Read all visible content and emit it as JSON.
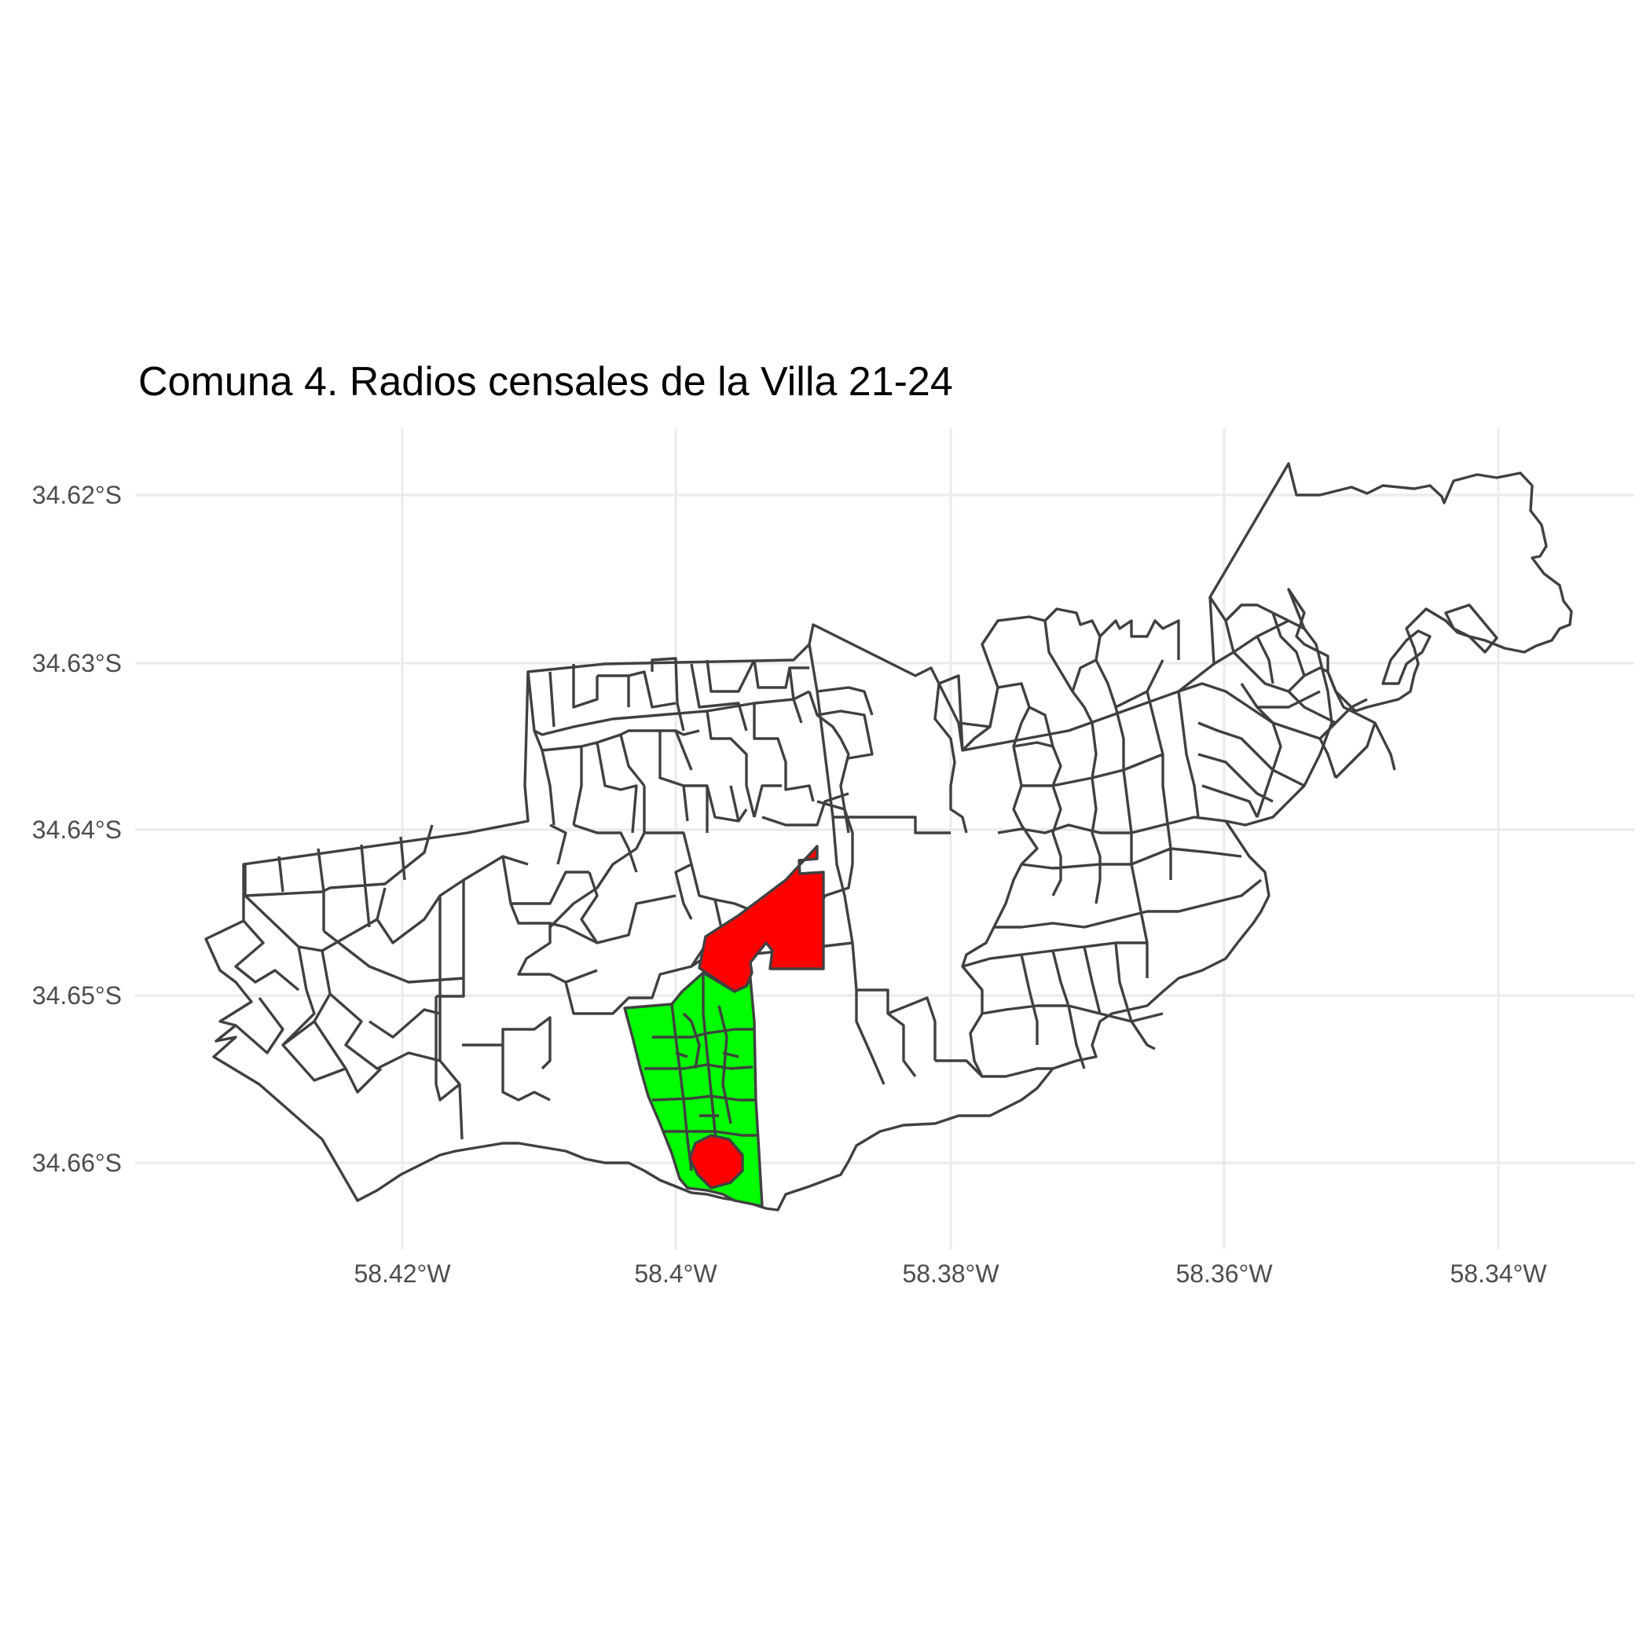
{
  "title": "Comuna 4. Radios censales de la Villa 21-24",
  "axes": {
    "x_ticks": [
      "58.42°W",
      "58.4°W",
      "58.38°W",
      "58.36°W",
      "58.34°W"
    ],
    "y_ticks": [
      "34.62°S",
      "34.63°S",
      "34.64°S",
      "34.65°S",
      "34.66°S"
    ]
  },
  "colors": {
    "highlight_red": "#ff0000",
    "highlight_green": "#00ff00",
    "boundary": "#404040",
    "grid": "#ebebeb"
  }
}
